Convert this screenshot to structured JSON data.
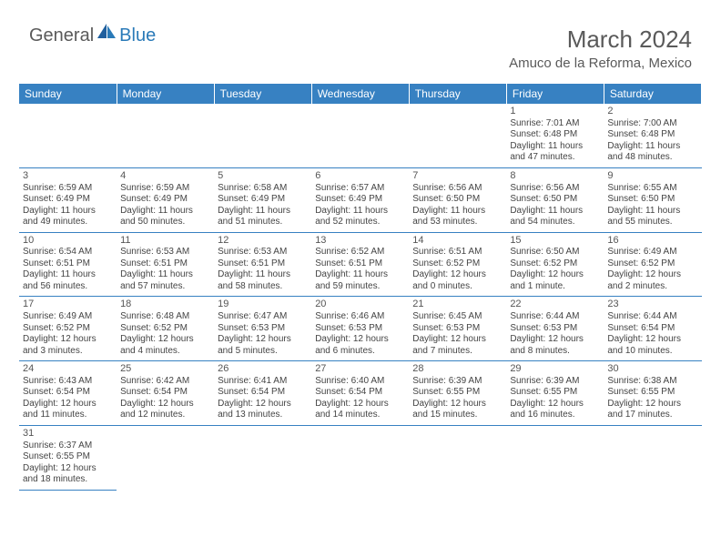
{
  "brand": {
    "part1": "General",
    "part2": "Blue"
  },
  "title": "March 2024",
  "location": "Amuco de la Reforma, Mexico",
  "colors": {
    "header_bg": "#3781c2",
    "header_fg": "#ffffff",
    "cell_border": "#3781c2",
    "text": "#444444",
    "title_text": "#5a5a5a",
    "logo_blue": "#2a7ab8",
    "page_bg": "#ffffff"
  },
  "typography": {
    "title_fontsize": 26,
    "location_fontsize": 15,
    "weekday_fontsize": 12,
    "cell_fontsize": 10,
    "daynum_fontsize": 11
  },
  "weekdays": [
    "Sunday",
    "Monday",
    "Tuesday",
    "Wednesday",
    "Thursday",
    "Friday",
    "Saturday"
  ],
  "weeks": [
    [
      null,
      null,
      null,
      null,
      null,
      {
        "n": "1",
        "sr": "Sunrise: 7:01 AM",
        "ss": "Sunset: 6:48 PM",
        "d1": "Daylight: 11 hours",
        "d2": "and 47 minutes."
      },
      {
        "n": "2",
        "sr": "Sunrise: 7:00 AM",
        "ss": "Sunset: 6:48 PM",
        "d1": "Daylight: 11 hours",
        "d2": "and 48 minutes."
      }
    ],
    [
      {
        "n": "3",
        "sr": "Sunrise: 6:59 AM",
        "ss": "Sunset: 6:49 PM",
        "d1": "Daylight: 11 hours",
        "d2": "and 49 minutes."
      },
      {
        "n": "4",
        "sr": "Sunrise: 6:59 AM",
        "ss": "Sunset: 6:49 PM",
        "d1": "Daylight: 11 hours",
        "d2": "and 50 minutes."
      },
      {
        "n": "5",
        "sr": "Sunrise: 6:58 AM",
        "ss": "Sunset: 6:49 PM",
        "d1": "Daylight: 11 hours",
        "d2": "and 51 minutes."
      },
      {
        "n": "6",
        "sr": "Sunrise: 6:57 AM",
        "ss": "Sunset: 6:49 PM",
        "d1": "Daylight: 11 hours",
        "d2": "and 52 minutes."
      },
      {
        "n": "7",
        "sr": "Sunrise: 6:56 AM",
        "ss": "Sunset: 6:50 PM",
        "d1": "Daylight: 11 hours",
        "d2": "and 53 minutes."
      },
      {
        "n": "8",
        "sr": "Sunrise: 6:56 AM",
        "ss": "Sunset: 6:50 PM",
        "d1": "Daylight: 11 hours",
        "d2": "and 54 minutes."
      },
      {
        "n": "9",
        "sr": "Sunrise: 6:55 AM",
        "ss": "Sunset: 6:50 PM",
        "d1": "Daylight: 11 hours",
        "d2": "and 55 minutes."
      }
    ],
    [
      {
        "n": "10",
        "sr": "Sunrise: 6:54 AM",
        "ss": "Sunset: 6:51 PM",
        "d1": "Daylight: 11 hours",
        "d2": "and 56 minutes."
      },
      {
        "n": "11",
        "sr": "Sunrise: 6:53 AM",
        "ss": "Sunset: 6:51 PM",
        "d1": "Daylight: 11 hours",
        "d2": "and 57 minutes."
      },
      {
        "n": "12",
        "sr": "Sunrise: 6:53 AM",
        "ss": "Sunset: 6:51 PM",
        "d1": "Daylight: 11 hours",
        "d2": "and 58 minutes."
      },
      {
        "n": "13",
        "sr": "Sunrise: 6:52 AM",
        "ss": "Sunset: 6:51 PM",
        "d1": "Daylight: 11 hours",
        "d2": "and 59 minutes."
      },
      {
        "n": "14",
        "sr": "Sunrise: 6:51 AM",
        "ss": "Sunset: 6:52 PM",
        "d1": "Daylight: 12 hours",
        "d2": "and 0 minutes."
      },
      {
        "n": "15",
        "sr": "Sunrise: 6:50 AM",
        "ss": "Sunset: 6:52 PM",
        "d1": "Daylight: 12 hours",
        "d2": "and 1 minute."
      },
      {
        "n": "16",
        "sr": "Sunrise: 6:49 AM",
        "ss": "Sunset: 6:52 PM",
        "d1": "Daylight: 12 hours",
        "d2": "and 2 minutes."
      }
    ],
    [
      {
        "n": "17",
        "sr": "Sunrise: 6:49 AM",
        "ss": "Sunset: 6:52 PM",
        "d1": "Daylight: 12 hours",
        "d2": "and 3 minutes."
      },
      {
        "n": "18",
        "sr": "Sunrise: 6:48 AM",
        "ss": "Sunset: 6:52 PM",
        "d1": "Daylight: 12 hours",
        "d2": "and 4 minutes."
      },
      {
        "n": "19",
        "sr": "Sunrise: 6:47 AM",
        "ss": "Sunset: 6:53 PM",
        "d1": "Daylight: 12 hours",
        "d2": "and 5 minutes."
      },
      {
        "n": "20",
        "sr": "Sunrise: 6:46 AM",
        "ss": "Sunset: 6:53 PM",
        "d1": "Daylight: 12 hours",
        "d2": "and 6 minutes."
      },
      {
        "n": "21",
        "sr": "Sunrise: 6:45 AM",
        "ss": "Sunset: 6:53 PM",
        "d1": "Daylight: 12 hours",
        "d2": "and 7 minutes."
      },
      {
        "n": "22",
        "sr": "Sunrise: 6:44 AM",
        "ss": "Sunset: 6:53 PM",
        "d1": "Daylight: 12 hours",
        "d2": "and 8 minutes."
      },
      {
        "n": "23",
        "sr": "Sunrise: 6:44 AM",
        "ss": "Sunset: 6:54 PM",
        "d1": "Daylight: 12 hours",
        "d2": "and 10 minutes."
      }
    ],
    [
      {
        "n": "24",
        "sr": "Sunrise: 6:43 AM",
        "ss": "Sunset: 6:54 PM",
        "d1": "Daylight: 12 hours",
        "d2": "and 11 minutes."
      },
      {
        "n": "25",
        "sr": "Sunrise: 6:42 AM",
        "ss": "Sunset: 6:54 PM",
        "d1": "Daylight: 12 hours",
        "d2": "and 12 minutes."
      },
      {
        "n": "26",
        "sr": "Sunrise: 6:41 AM",
        "ss": "Sunset: 6:54 PM",
        "d1": "Daylight: 12 hours",
        "d2": "and 13 minutes."
      },
      {
        "n": "27",
        "sr": "Sunrise: 6:40 AM",
        "ss": "Sunset: 6:54 PM",
        "d1": "Daylight: 12 hours",
        "d2": "and 14 minutes."
      },
      {
        "n": "28",
        "sr": "Sunrise: 6:39 AM",
        "ss": "Sunset: 6:55 PM",
        "d1": "Daylight: 12 hours",
        "d2": "and 15 minutes."
      },
      {
        "n": "29",
        "sr": "Sunrise: 6:39 AM",
        "ss": "Sunset: 6:55 PM",
        "d1": "Daylight: 12 hours",
        "d2": "and 16 minutes."
      },
      {
        "n": "30",
        "sr": "Sunrise: 6:38 AM",
        "ss": "Sunset: 6:55 PM",
        "d1": "Daylight: 12 hours",
        "d2": "and 17 minutes."
      }
    ],
    [
      {
        "n": "31",
        "sr": "Sunrise: 6:37 AM",
        "ss": "Sunset: 6:55 PM",
        "d1": "Daylight: 12 hours",
        "d2": "and 18 minutes."
      },
      null,
      null,
      null,
      null,
      null,
      null
    ]
  ]
}
